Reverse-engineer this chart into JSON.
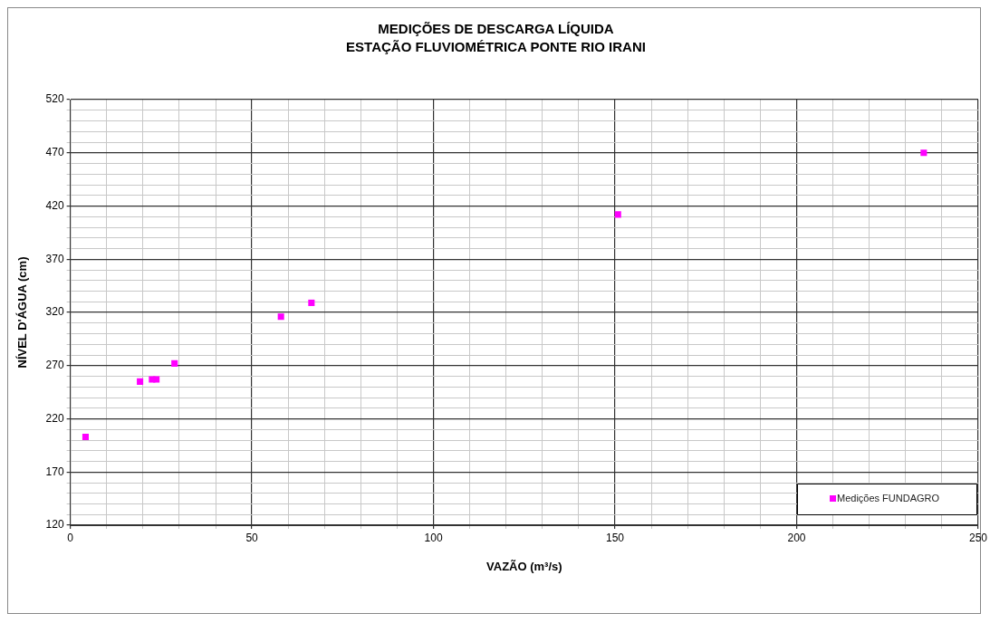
{
  "chart_data": {
    "type": "scatter",
    "title": "MEDIÇÕES DE DESCARGA LÍQUIDA",
    "subtitle": "ESTAÇÃO FLUVIOMÉTRICA PONTE RIO IRANI",
    "xlabel": "VAZÃO (m³/s)",
    "ylabel": "NÍVEL D'ÁGUA (cm)",
    "series": [
      {
        "name": "Medições FUNDAGRO",
        "color": "#ff00ff",
        "x": [
          4.2,
          19.2,
          22.5,
          23.7,
          28.7,
          58,
          66.4,
          150.8,
          235
        ],
        "values": [
          203,
          255,
          257,
          257,
          272,
          316,
          329,
          412,
          470
        ]
      }
    ],
    "xlim": [
      0,
      250
    ],
    "ylim": [
      120,
      520
    ],
    "xticks": [
      0,
      {
        "value": 10,
        "label": null
      },
      {
        "value": 20,
        "label": null
      },
      {
        "value": 30,
        "label": null
      },
      {
        "value": 40,
        "label": null
      },
      50,
      {
        "value": 60,
        "label": null
      },
      {
        "value": 70,
        "label": null
      },
      {
        "value": 80,
        "label": null
      },
      {
        "value": 90,
        "label": null
      },
      100,
      {
        "value": 110,
        "label": null
      },
      {
        "value": 120,
        "label": null
      },
      {
        "value": 130,
        "label": null
      },
      {
        "value": 140,
        "label": null
      },
      150,
      {
        "value": 160,
        "label": null
      },
      {
        "value": 170,
        "label": null
      },
      {
        "value": 180,
        "label": null
      },
      {
        "value": 190,
        "label": null
      },
      200,
      {
        "value": 210,
        "label": null
      },
      {
        "value": 220,
        "label": null
      },
      {
        "value": 230,
        "label": null
      },
      {
        "value": 240,
        "label": null
      },
      250
    ],
    "yticks": [
      120,
      {
        "value": 130,
        "label": null
      },
      {
        "value": 140,
        "label": null
      },
      {
        "value": 150,
        "label": null
      },
      {
        "value": 160,
        "label": null
      },
      170,
      {
        "value": 180,
        "label": null
      },
      {
        "value": 190,
        "label": null
      },
      {
        "value": 200,
        "label": null
      },
      {
        "value": 210,
        "label": null
      },
      220,
      {
        "value": 230,
        "label": null
      },
      {
        "value": 240,
        "label": null
      },
      {
        "value": 250,
        "label": null
      },
      {
        "value": 260,
        "label": null
      },
      270,
      {
        "value": 280,
        "label": null
      },
      {
        "value": 290,
        "label": null
      },
      {
        "value": 300,
        "label": null
      },
      {
        "value": 310,
        "label": null
      },
      320,
      {
        "value": 330,
        "label": null
      },
      {
        "value": 340,
        "label": null
      },
      {
        "value": 350,
        "label": null
      },
      {
        "value": 360,
        "label": null
      },
      370,
      {
        "value": 380,
        "label": null
      },
      {
        "value": 390,
        "label": null
      },
      {
        "value": 400,
        "label": null
      },
      {
        "value": 410,
        "label": null
      },
      420,
      {
        "value": 430,
        "label": null
      },
      {
        "value": 440,
        "label": null
      },
      {
        "value": 450,
        "label": null
      },
      {
        "value": 460,
        "label": null
      },
      470,
      {
        "value": 480,
        "label": null
      },
      {
        "value": 490,
        "label": null
      },
      {
        "value": 500,
        "label": null
      },
      {
        "value": 510,
        "label": null
      },
      520
    ],
    "grid": true,
    "legend": "bottom right",
    "marker": "square"
  }
}
